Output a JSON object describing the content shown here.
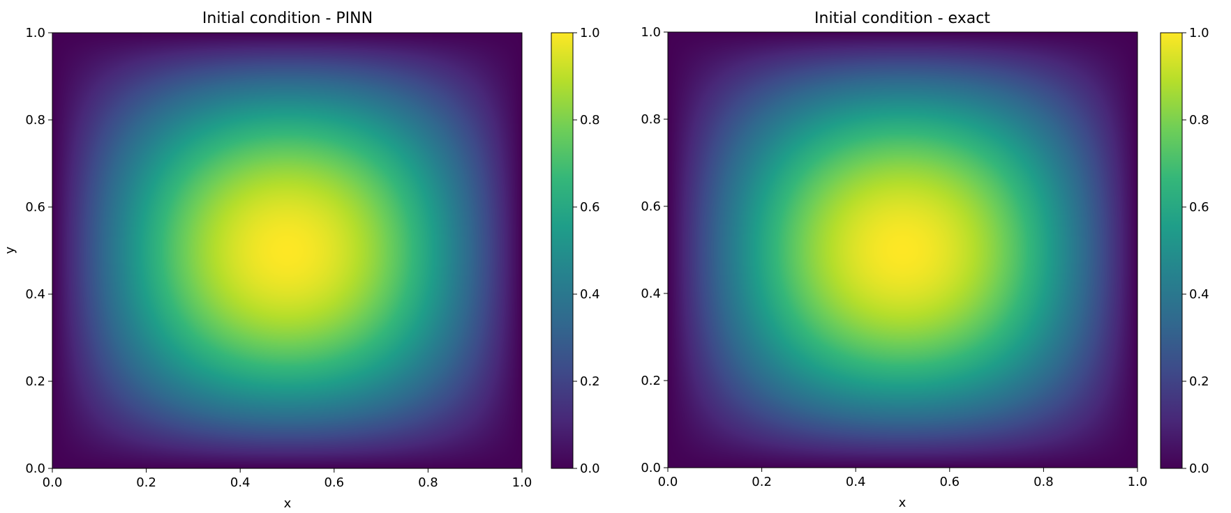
{
  "chart_data": [
    {
      "type": "heatmap",
      "title": "Initial condition - PINN",
      "xlabel": "x",
      "ylabel": "y",
      "xlim": [
        0.0,
        1.0
      ],
      "ylim": [
        0.0,
        1.0
      ],
      "x_ticks": [
        "0.0",
        "0.2",
        "0.4",
        "0.6",
        "0.8",
        "1.0"
      ],
      "y_ticks": [
        "0.0",
        "0.2",
        "0.4",
        "0.6",
        "0.8",
        "1.0"
      ],
      "function": "sin(pi*x)*sin(pi*y)",
      "center": [
        0.5,
        0.5
      ],
      "colormap": "viridis",
      "colorbar": {
        "range": [
          0.0,
          1.0
        ],
        "ticks": [
          "0.0",
          "0.2",
          "0.4",
          "0.6",
          "0.8",
          "1.0"
        ]
      }
    },
    {
      "type": "heatmap",
      "title": "Initial condition - exact",
      "xlabel": "x",
      "ylabel": "",
      "xlim": [
        0.0,
        1.0
      ],
      "ylim": [
        0.0,
        1.0
      ],
      "x_ticks": [
        "0.0",
        "0.2",
        "0.4",
        "0.6",
        "0.8",
        "1.0"
      ],
      "y_ticks": [
        "0.0",
        "0.2",
        "0.4",
        "0.6",
        "0.8",
        "1.0"
      ],
      "function": "sin(pi*x)*sin(pi*y)",
      "center": [
        0.5,
        0.5
      ],
      "colormap": "viridis",
      "colorbar": {
        "range": [
          0.0,
          1.0
        ],
        "ticks": [
          "0.0",
          "0.2",
          "0.4",
          "0.6",
          "0.8",
          "1.0"
        ]
      }
    }
  ]
}
